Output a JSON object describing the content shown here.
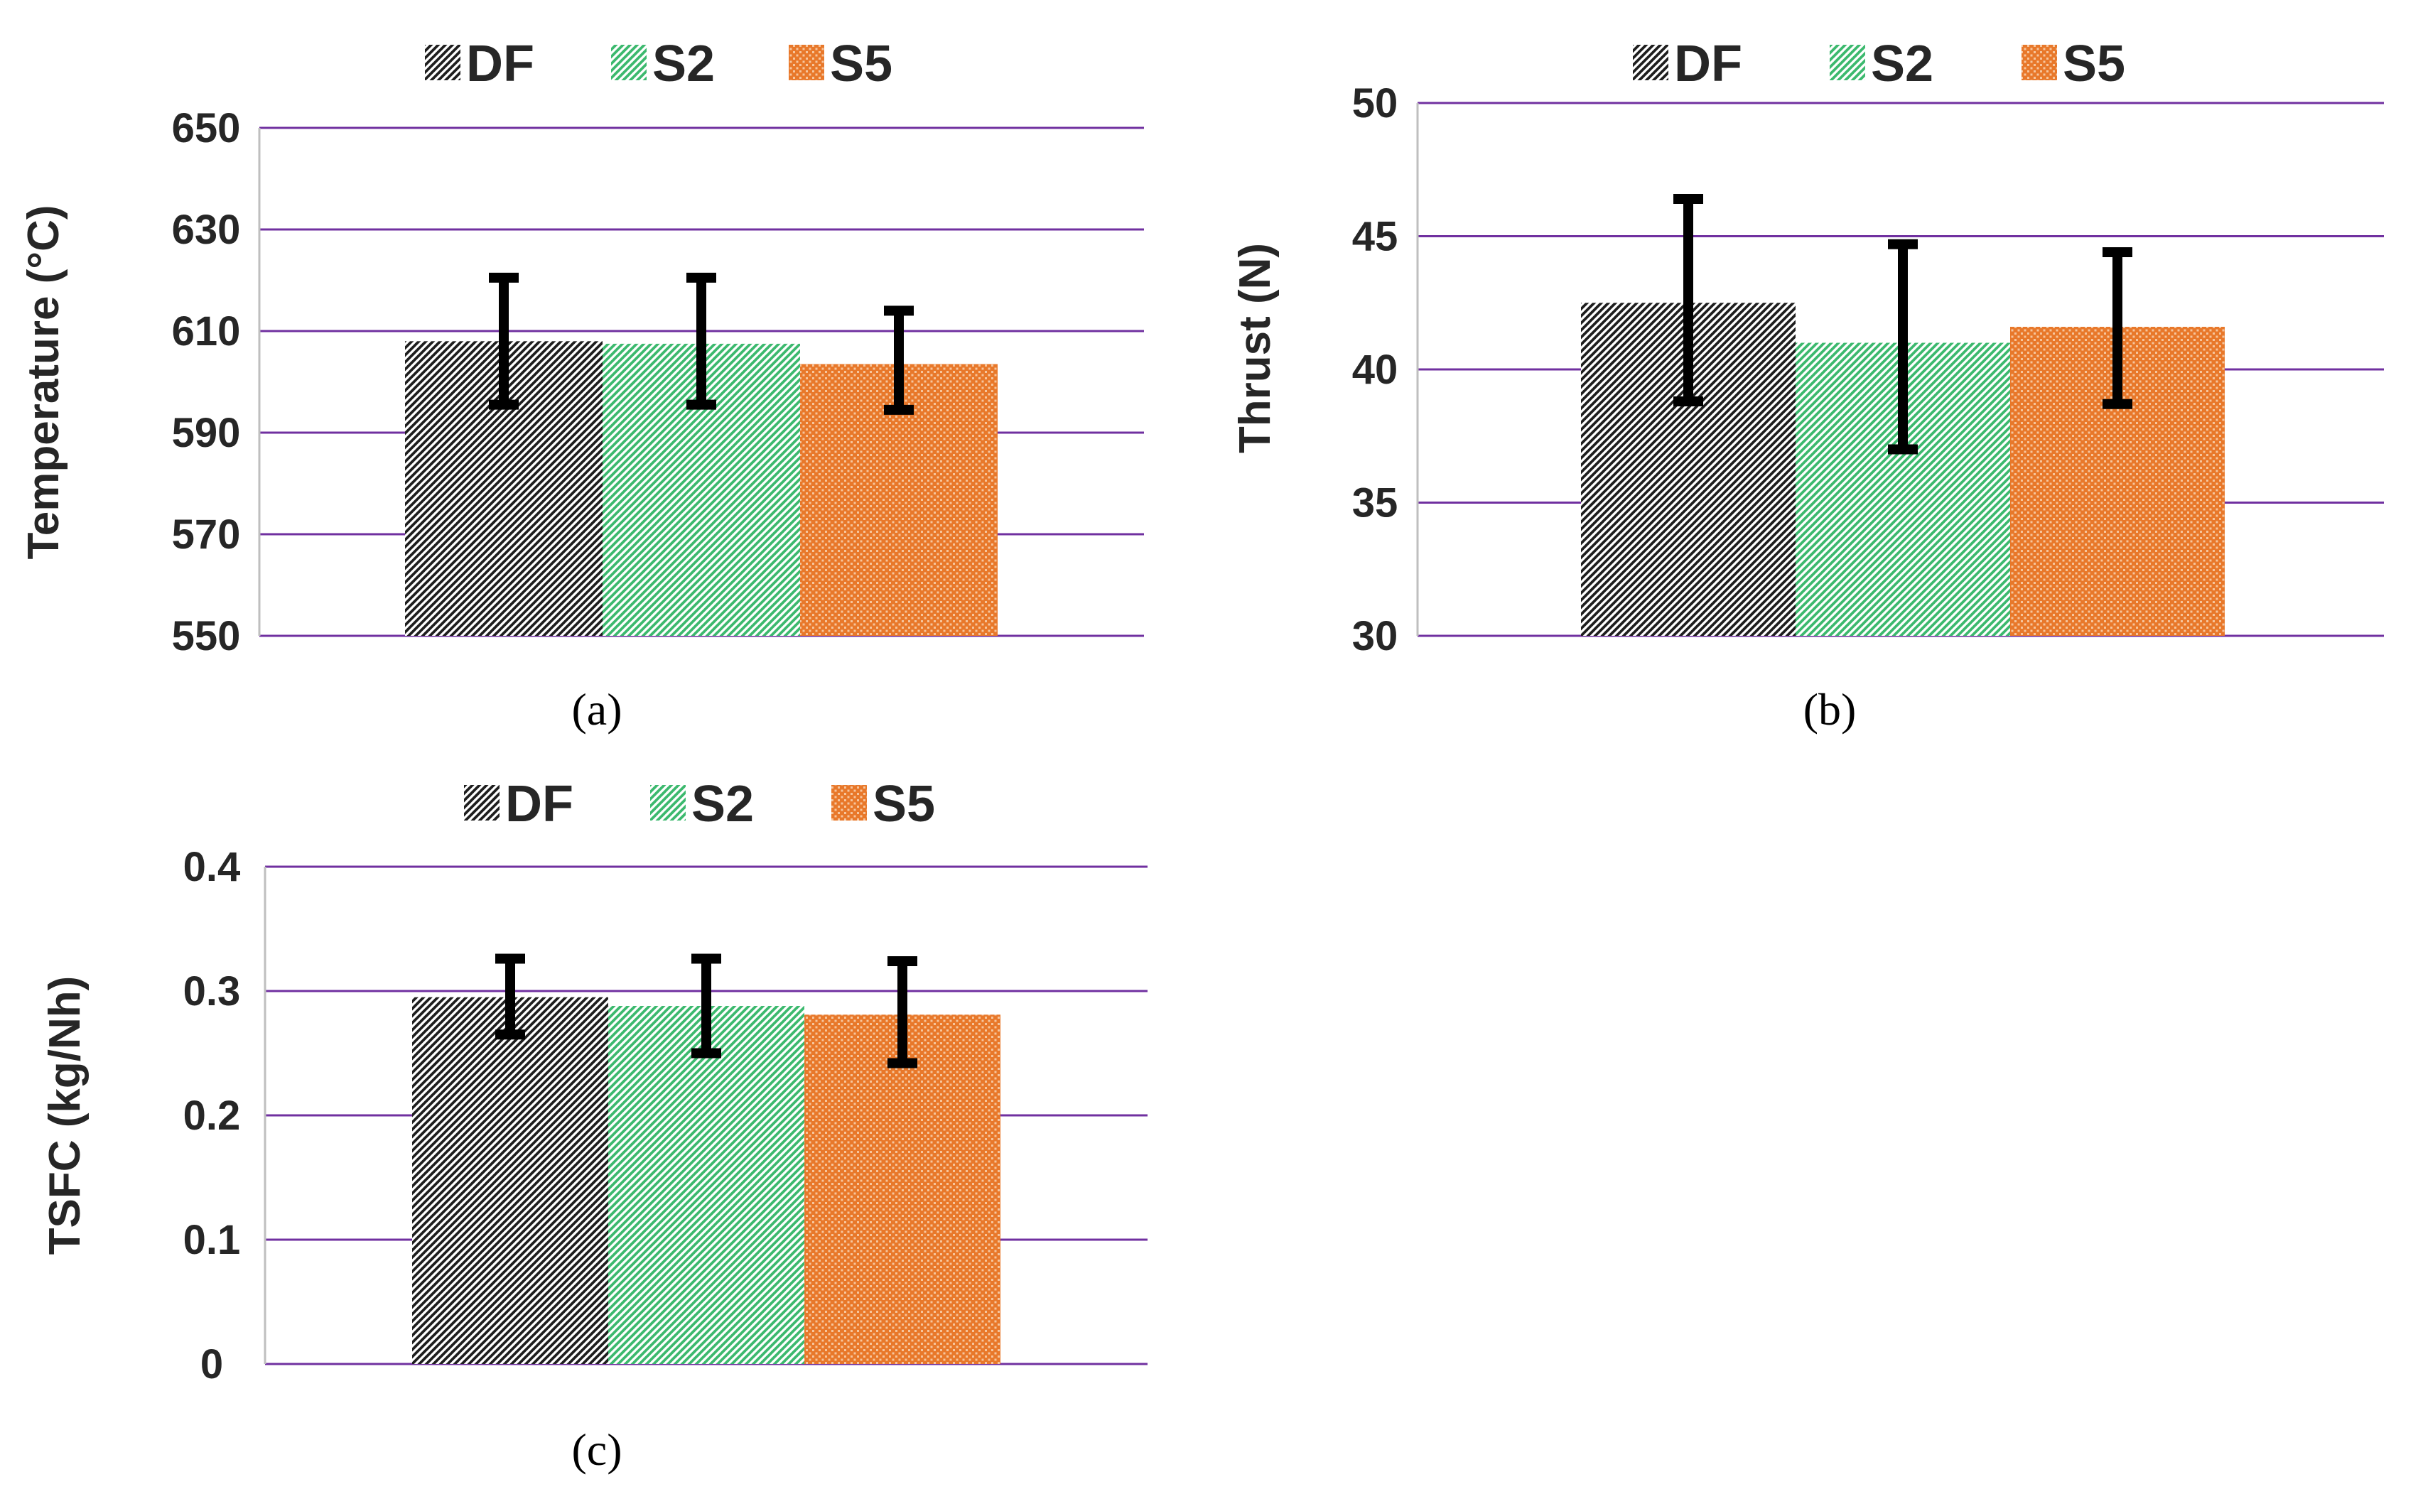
{
  "chart_data": [
    {
      "type": "bar",
      "panel_label": "(a)",
      "categories": [
        "DF",
        "S2",
        "S5"
      ],
      "values": [
        608,
        607.5,
        603.5
      ],
      "error_low": [
        595.5,
        595.5,
        594.5
      ],
      "error_high": [
        620.5,
        620.5,
        614
      ],
      "xlabel": "",
      "ylabel": "Temperature (°C)",
      "ylim": [
        550,
        650
      ],
      "yticks": [
        "550",
        "570",
        "590",
        "610",
        "630",
        "650"
      ],
      "ytick_values": [
        550,
        570,
        590,
        610,
        630,
        650
      ],
      "legend": [
        "DF",
        "S2",
        "S5"
      ],
      "legend_position": "top",
      "grid": true
    },
    {
      "type": "bar",
      "panel_label": "(b)",
      "categories": [
        "DF",
        "S2",
        "S5"
      ],
      "values": [
        42.5,
        41,
        41.6
      ],
      "error_low": [
        38.8,
        37,
        38.7
      ],
      "error_high": [
        46.4,
        44.7,
        44.4
      ],
      "xlabel": "",
      "ylabel": "Thrust (N)",
      "ylim": [
        30,
        50
      ],
      "yticks": [
        "30",
        "35",
        "40",
        "45",
        "50"
      ],
      "ytick_values": [
        30,
        35,
        40,
        45,
        50
      ],
      "legend": [
        "DF",
        "S2",
        "S5"
      ],
      "legend_position": "top",
      "grid": true
    },
    {
      "type": "bar",
      "panel_label": "(c)",
      "categories": [
        "DF",
        "S2",
        "S5"
      ],
      "values": [
        0.295,
        0.288,
        0.281
      ],
      "error_low": [
        0.265,
        0.25,
        0.242
      ],
      "error_high": [
        0.326,
        0.326,
        0.324
      ],
      "xlabel": "",
      "ylabel": "TSFC (kg/Nh)",
      "ylim": [
        0,
        0.4
      ],
      "yticks": [
        "0",
        "0.1",
        "0.2",
        "0.3",
        "0.4"
      ],
      "ytick_values": [
        0,
        0.1,
        0.2,
        0.3,
        0.4
      ],
      "legend": [
        "DF",
        "S2",
        "S5"
      ],
      "legend_position": "top",
      "grid": true
    }
  ],
  "colors": {
    "DF": "#1e1e1e",
    "S2": "#3cb96e",
    "S5": "#e8782a",
    "gridline": "#7030a0",
    "error_bar": "#000000"
  }
}
